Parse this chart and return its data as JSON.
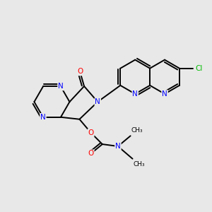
{
  "background_color": "#e8e8e8",
  "bond_color": "#000000",
  "atom_colors": {
    "N": "#0000ff",
    "O": "#ff0000",
    "Cl": "#00bb00",
    "C": "#000000"
  },
  "figsize": [
    3.0,
    3.0
  ],
  "dpi": 100
}
